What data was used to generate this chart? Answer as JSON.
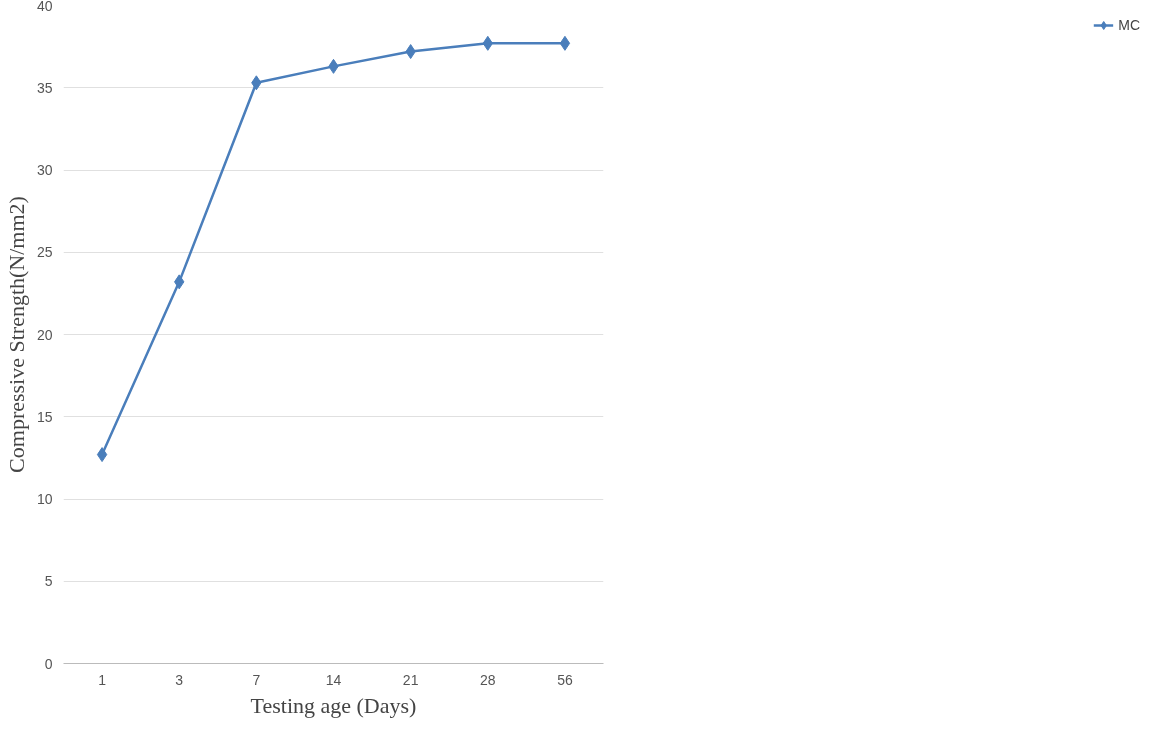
{
  "chart_data": {
    "type": "line",
    "xlabel": "Testing age (Days)",
    "ylabel": "Compressive Strength(N/mm2)",
    "categories": [
      "1",
      "3",
      "7",
      "14",
      "21",
      "28",
      "56"
    ],
    "series": [
      {
        "name": "MC",
        "color": "#4a7ebb",
        "values": [
          12.7,
          23.2,
          35.3,
          36.3,
          37.2,
          37.7,
          37.7
        ]
      }
    ],
    "ylim": [
      0,
      40
    ],
    "yticks": [
      0,
      5,
      10,
      15,
      20,
      25,
      30,
      35,
      40
    ],
    "grid": "y",
    "legend": "right",
    "marker": "diamond",
    "line_style": "solid"
  }
}
